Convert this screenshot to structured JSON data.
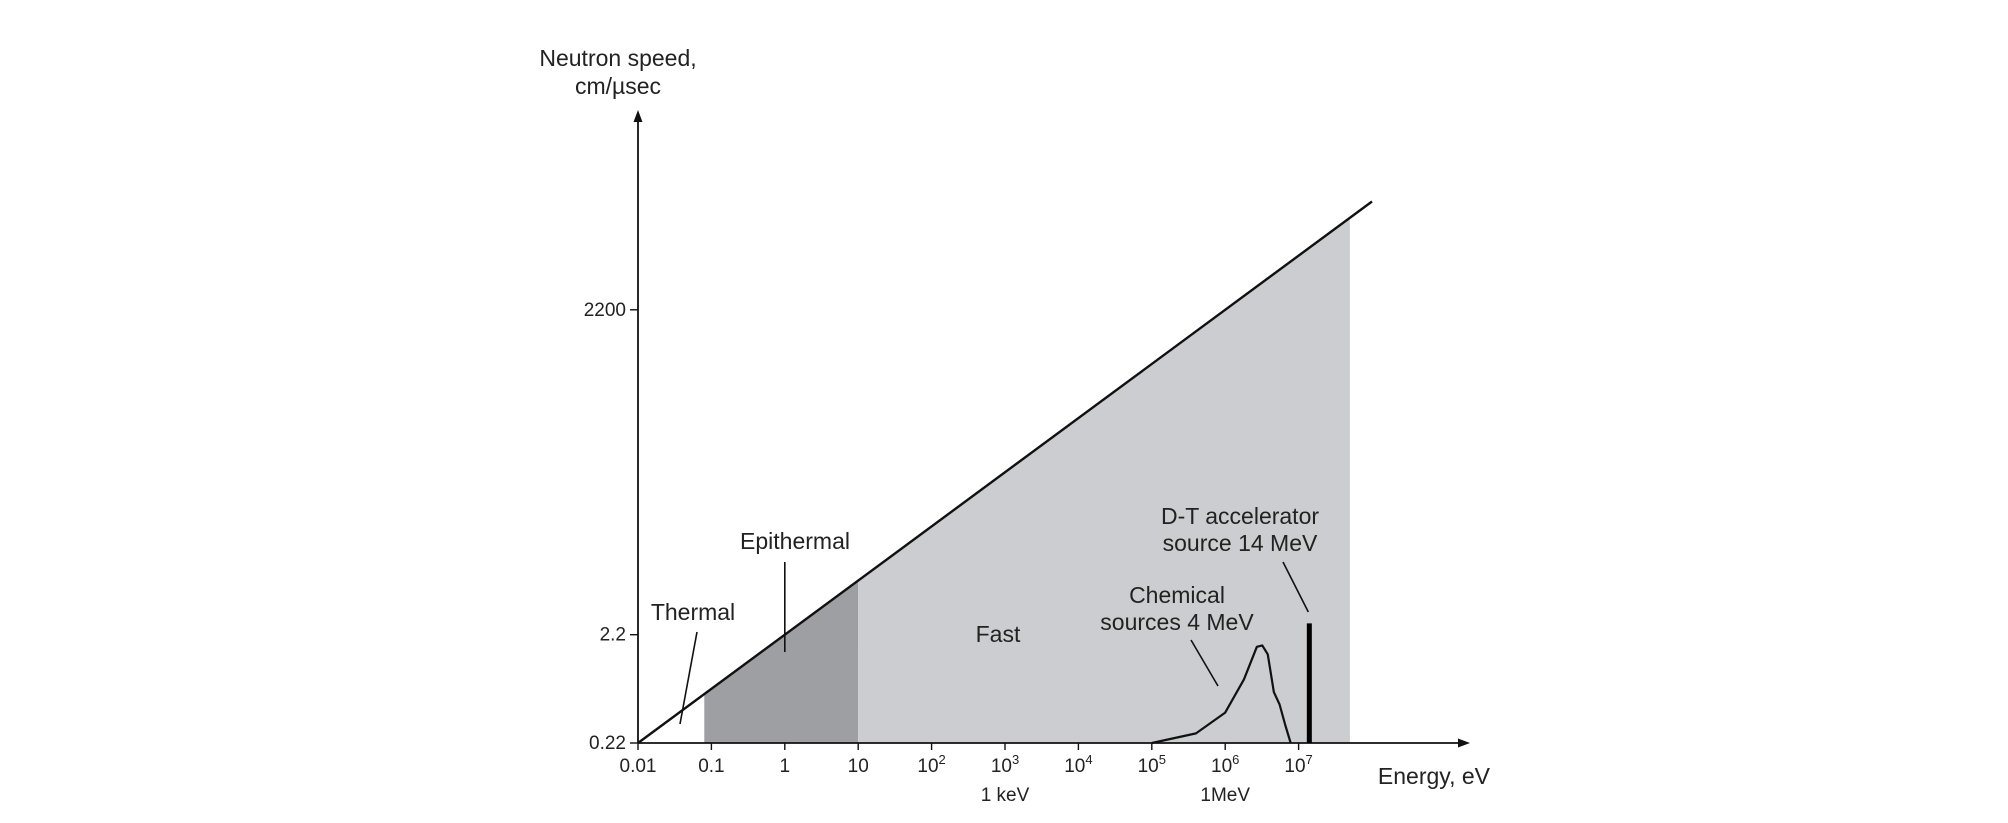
{
  "chart_data": {
    "type": "line",
    "title": "",
    "x_scale": "log",
    "y_scale": "log",
    "ylabel_line1": "Neutron speed,",
    "ylabel_line2": "cm/µsec",
    "xlabel": "Energy, eV",
    "x_ticks": [
      {
        "value": 0.01,
        "base": "0.01",
        "exp": ""
      },
      {
        "value": 0.1,
        "base": "0.1",
        "exp": ""
      },
      {
        "value": 1,
        "base": "1",
        "exp": ""
      },
      {
        "value": 10,
        "base": "10",
        "exp": ""
      },
      {
        "value": 100,
        "base": "10",
        "exp": "2"
      },
      {
        "value": 1000,
        "base": "10",
        "exp": "3"
      },
      {
        "value": 10000,
        "base": "10",
        "exp": "4"
      },
      {
        "value": 100000,
        "base": "10",
        "exp": "5"
      },
      {
        "value": 1000000,
        "base": "10",
        "exp": "6"
      },
      {
        "value": 10000000,
        "base": "10",
        "exp": "7"
      }
    ],
    "x_sublabels": [
      {
        "value": 1000,
        "text": "1 keV"
      },
      {
        "value": 1000000,
        "text": "1MeV"
      }
    ],
    "y_ticks": [
      {
        "value": 0.22,
        "label": "0.22"
      },
      {
        "value": 2.2,
        "label": "2.2"
      },
      {
        "value": 2200,
        "label": "2200"
      }
    ],
    "speed_line": {
      "x": [
        0.01,
        100000000
      ],
      "y": [
        0.22,
        22000
      ]
    },
    "regions": [
      {
        "name": "Thermal",
        "x_range": [
          0.01,
          0.08
        ],
        "color": "#ffffff"
      },
      {
        "name": "Epithermal",
        "x_range": [
          0.08,
          10
        ],
        "color": "#9d9fa3"
      },
      {
        "name": "Fast",
        "x_range": [
          10,
          50000000
        ],
        "color": "#cccdd0"
      }
    ],
    "annotations": {
      "thermal": "Thermal",
      "epithermal": "Epithermal",
      "fast": "Fast",
      "chemical_line1": "Chemical",
      "chemical_line2": "sources 4 MeV",
      "dt_line1": "D-T accelerator",
      "dt_line2": "source 14 MeV"
    },
    "chemical_source_spectrum": {
      "x": [
        100000,
        400000,
        1000000,
        1800000,
        2700000,
        3200000,
        3800000,
        4600000,
        5500000,
        6600000,
        7800000
      ],
      "y": [
        0.22,
        0.27,
        0.42,
        0.85,
        1.7,
        1.75,
        1.45,
        0.65,
        0.5,
        0.32,
        0.22
      ]
    },
    "dt_source": {
      "x": 14000000,
      "y_top": 2.8
    },
    "colors": {
      "fast": "#cccdd0",
      "epithermal": "#9d9fa3",
      "line": "#111111",
      "text": "#222222"
    }
  }
}
